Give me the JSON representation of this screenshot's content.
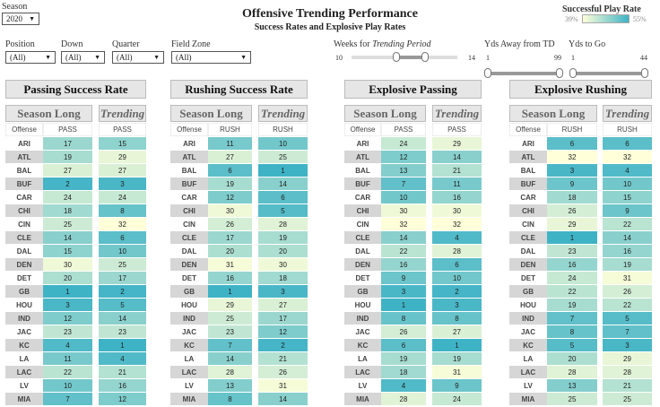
{
  "header": {
    "title": "Offensive Trending Performance",
    "subtitle": "Success Rates and Explosive Play Rates"
  },
  "filters": {
    "season": {
      "label": "Season",
      "value": "2020"
    },
    "position": {
      "label": "Position",
      "value": "(All)"
    },
    "down": {
      "label": "Down",
      "value": "(All)"
    },
    "quarter": {
      "label": "Quarter",
      "value": "(All)"
    },
    "field_zone": {
      "label": "Field Zone",
      "value": "(All)"
    },
    "weeks": {
      "label_pre": "Weeks for ",
      "label_em": "Trending Period",
      "min": "10",
      "max": "14"
    },
    "yds_away": {
      "label": "Yds Away from TD",
      "min": "1",
      "max": "99"
    },
    "yds_to_go": {
      "label": "Yds to Go",
      "min": "1",
      "max": "44"
    }
  },
  "legend": {
    "title": "Successful Play Rate",
    "min": "39%",
    "max": "55%",
    "color_low": "#ffffd9",
    "color_high": "#3fb3c6"
  },
  "teams": [
    "ARI",
    "ATL",
    "BAL",
    "BUF",
    "CAR",
    "CHI",
    "CIN",
    "CLE",
    "DAL",
    "DEN",
    "DET",
    "GB",
    "HOU",
    "IND",
    "JAC",
    "KC",
    "LA",
    "LAC",
    "LV",
    "MIA"
  ],
  "tables": [
    {
      "title": "Passing Success Rate",
      "season_label": "Season Long",
      "trending_label": "Trending",
      "offense_header": "Offense",
      "col": "PASS",
      "season": [
        17,
        19,
        27,
        2,
        24,
        18,
        25,
        14,
        15,
        30,
        20,
        1,
        3,
        12,
        23,
        4,
        11,
        22,
        10,
        7
      ],
      "trending": [
        15,
        29,
        27,
        3,
        24,
        8,
        32,
        6,
        10,
        25,
        17,
        2,
        5,
        14,
        23,
        1,
        4,
        21,
        16,
        12
      ]
    },
    {
      "title": "Rushing Success Rate",
      "season_label": "Season Long",
      "trending_label": "Trending",
      "offense_header": "Offense",
      "col": "RUSH",
      "season": [
        11,
        27,
        6,
        19,
        12,
        30,
        26,
        17,
        20,
        31,
        16,
        1,
        29,
        25,
        23,
        7,
        14,
        28,
        13,
        8
      ],
      "trending": [
        10,
        25,
        1,
        14,
        6,
        5,
        28,
        19,
        20,
        30,
        18,
        3,
        27,
        17,
        12,
        2,
        21,
        26,
        31,
        14
      ]
    },
    {
      "title": "Explosive Passing",
      "season_label": "Season Long",
      "trending_label": "Trending",
      "offense_header": "Offense",
      "col": "PASS",
      "season": [
        24,
        12,
        13,
        7,
        10,
        30,
        32,
        14,
        22,
        16,
        9,
        3,
        1,
        8,
        26,
        6,
        19,
        18,
        4,
        28
      ],
      "trending": [
        29,
        14,
        21,
        11,
        16,
        30,
        32,
        4,
        28,
        6,
        10,
        2,
        3,
        8,
        27,
        1,
        19,
        31,
        9,
        24
      ]
    },
    {
      "title": "Explosive Rushing",
      "season_label": "Season Long",
      "trending_label": "Trending",
      "offense_header": "Offense",
      "col": "RUSH",
      "season": [
        6,
        32,
        3,
        9,
        18,
        26,
        29,
        1,
        23,
        16,
        24,
        22,
        19,
        7,
        8,
        5,
        20,
        28,
        13,
        25
      ],
      "trending": [
        6,
        32,
        4,
        10,
        15,
        9,
        22,
        14,
        16,
        19,
        31,
        26,
        22,
        5,
        7,
        3,
        29,
        28,
        21,
        25
      ]
    }
  ]
}
